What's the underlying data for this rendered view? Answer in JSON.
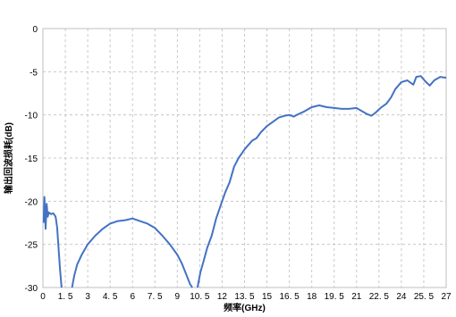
{
  "chart_data": {
    "type": "line",
    "title": "",
    "xlabel": "频率(GHz)",
    "ylabel": "输出回波损耗(dB)",
    "xlim": [
      0,
      27
    ],
    "ylim": [
      -30,
      0
    ],
    "grid": true,
    "x_ticks": [
      0,
      1.5,
      3,
      4.5,
      6,
      7.5,
      9,
      10.5,
      12,
      13.5,
      15,
      16.5,
      18,
      19.5,
      21,
      22.5,
      24,
      25.5,
      27
    ],
    "x_tick_labels": [
      "0",
      "1. 5",
      "3",
      "4. 5",
      "6",
      "7. 5",
      "9",
      "10. 5",
      "12",
      "13. 5",
      "15",
      "16. 5",
      "18",
      "19. 5",
      "21",
      "22. 5",
      "24",
      "25. 5",
      "27"
    ],
    "y_ticks": [
      0,
      -5,
      -10,
      -15,
      -20,
      -25,
      -30
    ],
    "y_tick_labels": [
      "0",
      "-5",
      "-10",
      "-15",
      "-20",
      "-25",
      "-30"
    ],
    "series": [
      {
        "color": "#4472C4",
        "segments": [
          [
            [
              0.05,
              -22.5
            ],
            [
              0.1,
              -19.5
            ],
            [
              0.18,
              -23.2
            ],
            [
              0.25,
              -20.3
            ],
            [
              0.32,
              -21.8
            ],
            [
              0.4,
              -21.3
            ],
            [
              0.55,
              -21.5
            ],
            [
              0.7,
              -21.4
            ],
            [
              0.85,
              -21.8
            ],
            [
              0.95,
              -23.0
            ],
            [
              1.05,
              -25.5
            ],
            [
              1.15,
              -28.0
            ],
            [
              1.25,
              -30.0
            ]
          ],
          [
            [
              1.95,
              -30.0
            ],
            [
              2.1,
              -28.6
            ],
            [
              2.3,
              -27.3
            ],
            [
              2.6,
              -26.2
            ],
            [
              3.0,
              -25.0
            ],
            [
              3.5,
              -24.0
            ],
            [
              4.0,
              -23.2
            ],
            [
              4.5,
              -22.6
            ],
            [
              5.0,
              -22.3
            ],
            [
              5.5,
              -22.2
            ],
            [
              6.0,
              -22.0
            ],
            [
              6.5,
              -22.3
            ],
            [
              7.0,
              -22.6
            ],
            [
              7.5,
              -23.1
            ],
            [
              8.0,
              -24.0
            ],
            [
              8.5,
              -25.0
            ],
            [
              9.0,
              -26.2
            ],
            [
              9.3,
              -27.2
            ],
            [
              9.6,
              -28.5
            ],
            [
              9.85,
              -29.6
            ],
            [
              10.0,
              -30.0
            ]
          ],
          [
            [
              10.35,
              -30.0
            ],
            [
              10.55,
              -28.2
            ],
            [
              10.75,
              -27.0
            ],
            [
              11.0,
              -25.4
            ],
            [
              11.3,
              -24.0
            ],
            [
              11.6,
              -22.0
            ],
            [
              11.9,
              -20.5
            ],
            [
              12.2,
              -19.0
            ],
            [
              12.5,
              -17.8
            ],
            [
              12.8,
              -16.0
            ],
            [
              13.1,
              -15.0
            ],
            [
              13.5,
              -14.0
            ],
            [
              14.0,
              -13.0
            ],
            [
              14.3,
              -12.7
            ],
            [
              14.6,
              -12.0
            ],
            [
              15.0,
              -11.3
            ],
            [
              15.4,
              -10.8
            ],
            [
              15.8,
              -10.3
            ],
            [
              16.2,
              -10.1
            ],
            [
              16.5,
              -10.0
            ],
            [
              16.8,
              -10.2
            ],
            [
              17.0,
              -10.0
            ],
            [
              17.5,
              -9.6
            ],
            [
              18.0,
              -9.1
            ],
            [
              18.5,
              -8.9
            ],
            [
              19.0,
              -9.1
            ],
            [
              19.5,
              -9.2
            ],
            [
              20.0,
              -9.3
            ],
            [
              20.5,
              -9.3
            ],
            [
              21.0,
              -9.2
            ],
            [
              21.3,
              -9.5
            ],
            [
              21.7,
              -9.9
            ],
            [
              22.0,
              -10.1
            ],
            [
              22.3,
              -9.7
            ],
            [
              22.6,
              -9.2
            ],
            [
              23.0,
              -8.7
            ],
            [
              23.3,
              -8.0
            ],
            [
              23.6,
              -7.0
            ],
            [
              24.0,
              -6.2
            ],
            [
              24.4,
              -6.0
            ],
            [
              24.8,
              -6.5
            ],
            [
              25.0,
              -5.6
            ],
            [
              25.3,
              -5.5
            ],
            [
              25.6,
              -6.1
            ],
            [
              25.9,
              -6.6
            ],
            [
              26.2,
              -6.0
            ],
            [
              26.6,
              -5.6
            ],
            [
              27.0,
              -5.7
            ]
          ]
        ]
      }
    ]
  }
}
